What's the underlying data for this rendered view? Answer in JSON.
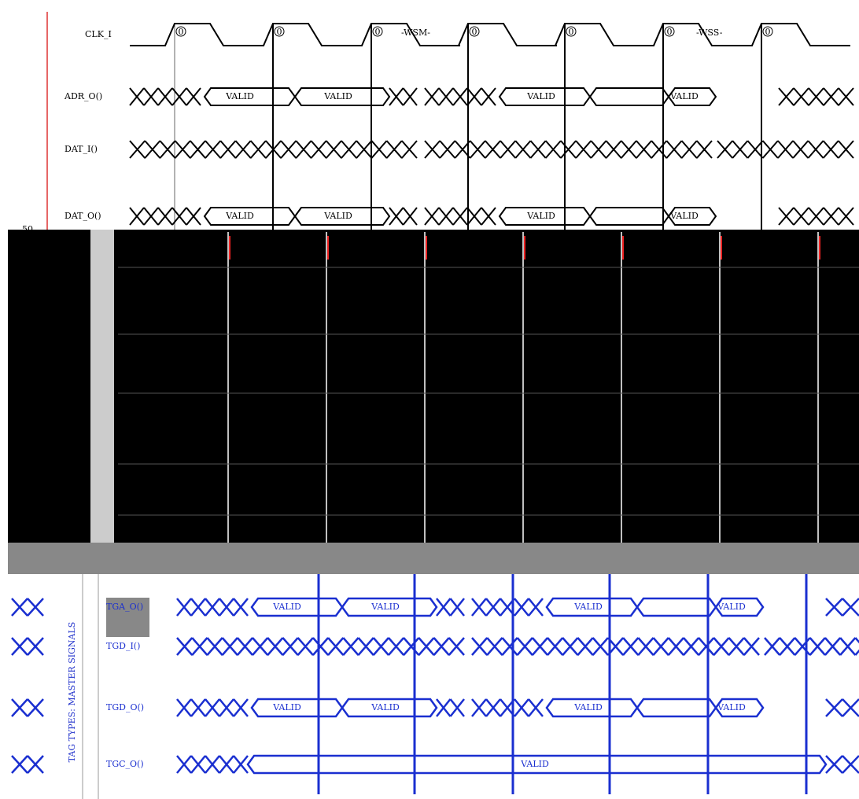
{
  "top_label": "50",
  "clock": {
    "label": "CLK_I",
    "edge_labels": [
      "0",
      "0",
      "0",
      "0",
      "0",
      "0",
      "0"
    ],
    "wait_labels": [
      "-WSM-",
      "-WSS-"
    ]
  },
  "top_signals": [
    {
      "label": "ADR_O()",
      "valid_labels": [
        "VALID",
        "VALID",
        "VALID",
        "VALID"
      ]
    },
    {
      "label": "DAT_I()",
      "valid_labels": []
    },
    {
      "label": "DAT_O()",
      "valid_labels": [
        "VALID",
        "VALID",
        "VALID",
        "VALID"
      ]
    }
  ],
  "side_label": "TAG TYPES: MASTER SIGNALS",
  "bottom_signals": [
    {
      "label": "TGA_O()",
      "valid_labels": [
        "VALID",
        "VALID",
        "VALID",
        "VALID"
      ]
    },
    {
      "label": "TGD_I()",
      "valid_labels": []
    },
    {
      "label": "TGD_O()",
      "valid_labels": [
        "VALID",
        "VALID",
        "VALID",
        "VALID"
      ]
    },
    {
      "label": "TGC_O()",
      "valid_labels": [
        "VALID"
      ]
    }
  ]
}
